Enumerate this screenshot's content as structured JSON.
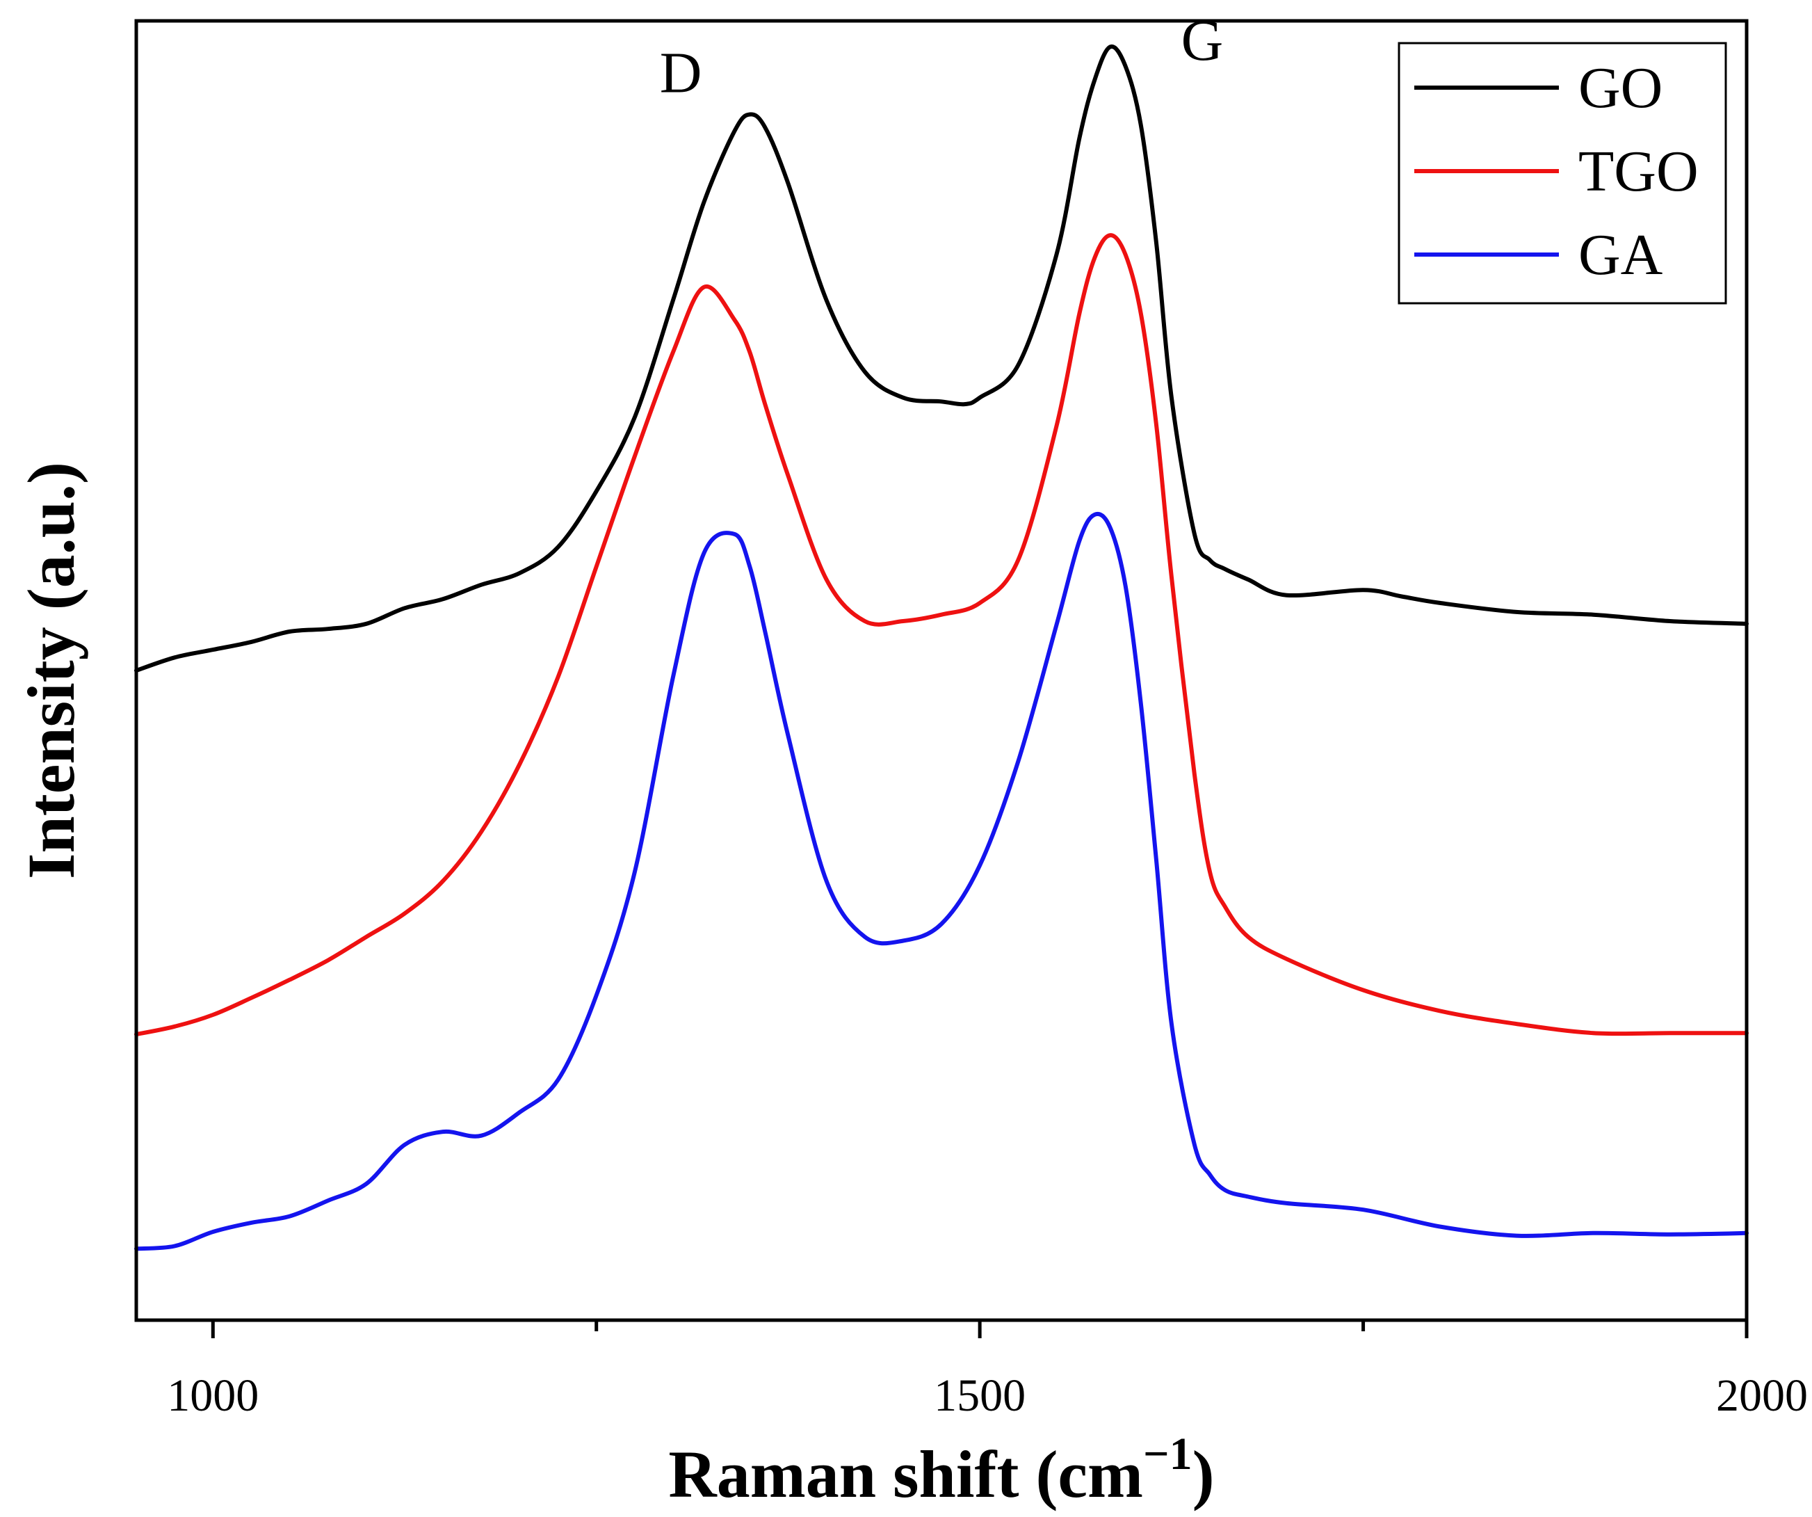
{
  "chart_data": {
    "type": "line",
    "title": "",
    "xlabel": "Raman shift (cm",
    "xlabel_sup": "−1",
    "xlabel_close": ")",
    "ylabel": "Intensity (a.u.)",
    "xlim": [
      950,
      2000
    ],
    "ylim": [
      0,
      10
    ],
    "x_ticks": [
      {
        "value": 1000,
        "label": "1000"
      },
      {
        "value": 1500,
        "label": "1500"
      },
      {
        "value": 2000,
        "label": "2000"
      }
    ],
    "minor_ticks": [
      1250,
      1750
    ],
    "legend_position": "top-right",
    "annotations": [
      {
        "text": "D",
        "x": 1305,
        "y": 9.45
      },
      {
        "text": "G",
        "x": 1645,
        "y": 9.7
      }
    ],
    "series": [
      {
        "name": "GO",
        "color": "#000000",
        "x": [
          950,
          975,
          1000,
          1025,
          1050,
          1075,
          1100,
          1125,
          1150,
          1175,
          1200,
          1225,
          1250,
          1275,
          1300,
          1320,
          1340,
          1350,
          1360,
          1375,
          1400,
          1425,
          1450,
          1475,
          1490,
          1500,
          1525,
          1550,
          1565,
          1575,
          1585,
          1595,
          1605,
          1615,
          1625,
          1640,
          1650,
          1660,
          1675,
          1700,
          1750,
          1775,
          1800,
          1850,
          1900,
          1950,
          2000
        ],
        "y": [
          5.0,
          5.1,
          5.16,
          5.22,
          5.3,
          5.32,
          5.36,
          5.48,
          5.55,
          5.66,
          5.75,
          5.95,
          6.38,
          6.95,
          7.85,
          8.6,
          9.15,
          9.28,
          9.18,
          8.75,
          7.85,
          7.3,
          7.1,
          7.07,
          7.05,
          7.1,
          7.35,
          8.2,
          9.1,
          9.55,
          9.8,
          9.65,
          9.2,
          8.3,
          7.1,
          6.05,
          5.85,
          5.78,
          5.7,
          5.58,
          5.62,
          5.57,
          5.52,
          5.45,
          5.43,
          5.38,
          5.36
        ]
      },
      {
        "name": "TGO",
        "color": "#ee1111",
        "x": [
          950,
          975,
          1000,
          1025,
          1050,
          1075,
          1100,
          1125,
          1150,
          1175,
          1200,
          1225,
          1250,
          1275,
          1300,
          1320,
          1340,
          1350,
          1360,
          1375,
          1400,
          1425,
          1450,
          1475,
          1500,
          1525,
          1550,
          1565,
          1575,
          1585,
          1595,
          1605,
          1615,
          1625,
          1640,
          1650,
          1660,
          1675,
          1700,
          1750,
          1800,
          1850,
          1900,
          1950,
          2000
        ],
        "y": [
          2.2,
          2.26,
          2.35,
          2.48,
          2.62,
          2.77,
          2.95,
          3.13,
          3.38,
          3.76,
          4.28,
          4.95,
          5.8,
          6.65,
          7.45,
          7.95,
          7.7,
          7.45,
          7.05,
          6.5,
          5.7,
          5.38,
          5.38,
          5.43,
          5.52,
          5.85,
          6.88,
          7.75,
          8.18,
          8.35,
          8.2,
          7.75,
          6.9,
          5.72,
          4.2,
          3.45,
          3.18,
          2.95,
          2.78,
          2.54,
          2.38,
          2.28,
          2.21,
          2.21,
          2.21
        ]
      },
      {
        "name": "GA",
        "color": "#1414ee",
        "x": [
          950,
          975,
          1000,
          1025,
          1050,
          1075,
          1100,
          1125,
          1150,
          1175,
          1200,
          1225,
          1250,
          1275,
          1300,
          1320,
          1340,
          1350,
          1360,
          1375,
          1400,
          1425,
          1450,
          1475,
          1500,
          1525,
          1550,
          1565,
          1575,
          1585,
          1595,
          1605,
          1615,
          1625,
          1640,
          1650,
          1660,
          1675,
          1700,
          1750,
          1800,
          1850,
          1900,
          1950,
          2000
        ],
        "y": [
          0.55,
          0.57,
          0.68,
          0.75,
          0.8,
          0.92,
          1.05,
          1.35,
          1.45,
          1.42,
          1.6,
          1.85,
          2.5,
          3.45,
          4.95,
          5.9,
          6.05,
          5.8,
          5.3,
          4.5,
          3.38,
          2.95,
          2.92,
          3.05,
          3.5,
          4.3,
          5.35,
          6.0,
          6.2,
          6.1,
          5.65,
          4.75,
          3.55,
          2.28,
          1.35,
          1.12,
          1.0,
          0.95,
          0.9,
          0.85,
          0.72,
          0.65,
          0.67,
          0.66,
          0.67
        ]
      }
    ]
  }
}
